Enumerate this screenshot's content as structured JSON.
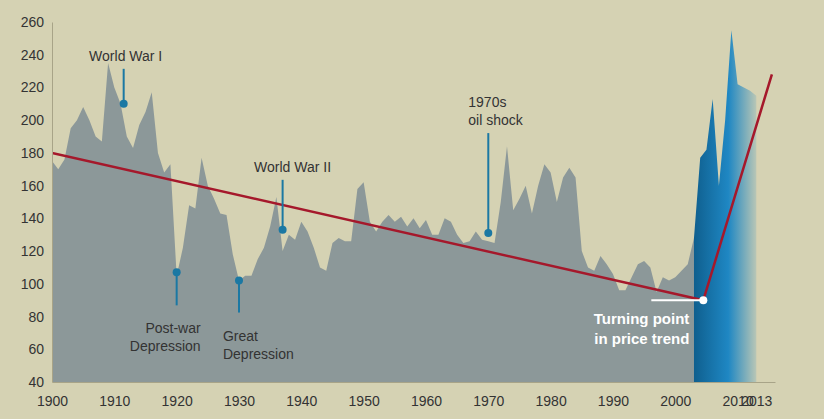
{
  "chart_data": {
    "type": "area",
    "x": [
      1900,
      1901,
      1902,
      1903,
      1904,
      1905,
      1906,
      1907,
      1908,
      1909,
      1910,
      1911,
      1912,
      1913,
      1914,
      1915,
      1916,
      1917,
      1918,
      1919,
      1920,
      1921,
      1922,
      1923,
      1924,
      1925,
      1926,
      1927,
      1928,
      1929,
      1930,
      1931,
      1932,
      1933,
      1934,
      1935,
      1936,
      1937,
      1938,
      1939,
      1940,
      1941,
      1942,
      1943,
      1944,
      1945,
      1946,
      1947,
      1948,
      1949,
      1950,
      1951,
      1952,
      1953,
      1954,
      1955,
      1956,
      1957,
      1958,
      1959,
      1960,
      1961,
      1962,
      1963,
      1964,
      1965,
      1966,
      1967,
      1968,
      1969,
      1970,
      1971,
      1972,
      1973,
      1974,
      1975,
      1976,
      1977,
      1978,
      1979,
      1980,
      1981,
      1982,
      1983,
      1984,
      1985,
      1986,
      1987,
      1988,
      1989,
      1990,
      1991,
      1992,
      1993,
      1994,
      1995,
      1996,
      1997,
      1998,
      1999,
      2000,
      2001,
      2002,
      2003,
      2004,
      2005,
      2006,
      2007,
      2008,
      2009,
      2010,
      2011,
      2012,
      2013
    ],
    "series": [
      {
        "type": "area",
        "color": "#8c9899",
        "values": [
          175,
          170,
          176,
          195,
          200,
          208,
          200,
          190,
          187,
          235,
          220,
          210,
          190,
          183,
          197,
          205,
          217,
          180,
          168,
          173,
          105,
          122,
          148,
          146,
          177,
          160,
          152,
          143,
          142,
          118,
          102,
          105,
          105,
          115,
          122,
          135,
          153,
          120,
          130,
          127,
          138,
          132,
          122,
          110,
          108,
          125,
          128,
          126,
          126,
          158,
          162,
          138,
          132,
          138,
          142,
          138,
          141,
          135,
          140,
          134,
          139,
          130,
          130,
          140,
          138,
          130,
          125,
          126,
          132,
          127,
          126,
          125,
          150,
          184,
          145,
          152,
          160,
          143,
          160,
          173,
          168,
          150,
          165,
          171,
          165,
          120,
          110,
          108,
          117,
          112,
          106,
          96,
          96,
          104,
          112,
          114,
          110,
          95,
          104,
          102,
          104,
          108,
          112,
          128,
          null,
          null,
          null,
          null,
          null,
          null,
          null,
          null,
          null,
          null
        ]
      },
      {
        "type": "area",
        "color": "#0f5f8e",
        "values": [
          null,
          null,
          null,
          null,
          null,
          null,
          null,
          null,
          null,
          null,
          null,
          null,
          null,
          null,
          null,
          null,
          null,
          null,
          null,
          null,
          null,
          null,
          null,
          null,
          null,
          null,
          null,
          null,
          null,
          null,
          null,
          null,
          null,
          null,
          null,
          null,
          null,
          null,
          null,
          null,
          null,
          null,
          null,
          null,
          null,
          null,
          null,
          null,
          null,
          null,
          null,
          null,
          null,
          null,
          null,
          null,
          null,
          null,
          null,
          null,
          null,
          null,
          null,
          null,
          null,
          null,
          null,
          null,
          null,
          null,
          null,
          null,
          null,
          null,
          null,
          null,
          null,
          null,
          null,
          null,
          null,
          null,
          null,
          null,
          null,
          null,
          null,
          null,
          null,
          null,
          null,
          null,
          null,
          null,
          null,
          null,
          null,
          null,
          null,
          null,
          null,
          null,
          null,
          128,
          177,
          182,
          213,
          160,
          200,
          255,
          222,
          220,
          218,
          215
        ]
      },
      {
        "type": "line",
        "color": "#a5182b",
        "x": [
          1900,
          2004.5,
          2015.5
        ],
        "values": [
          180,
          90,
          228
        ]
      }
    ],
    "xlim": [
      1900,
      2016
    ],
    "xticks": [
      1900,
      1910,
      1920,
      1930,
      1940,
      1950,
      1960,
      1970,
      1980,
      1990,
      2000,
      2010,
      2013
    ],
    "ylim": [
      40,
      260
    ],
    "yticks": [
      40,
      60,
      80,
      100,
      120,
      140,
      160,
      180,
      200,
      220,
      240,
      260
    ],
    "grid": false,
    "annotations": [
      {
        "lines": [
          "World War I"
        ],
        "x": 1911.5,
        "y": 210,
        "side": "above"
      },
      {
        "lines": [
          "Post-war",
          "Depression"
        ],
        "x": 1920,
        "y": 107,
        "side": "below"
      },
      {
        "lines": [
          "Great",
          "Depression"
        ],
        "x": 1930,
        "y": 102,
        "side": "below"
      },
      {
        "lines": [
          "World War II"
        ],
        "x": 1937,
        "y": 133,
        "side": "above"
      },
      {
        "lines": [
          "1970s",
          "oil shock"
        ],
        "x": 1970,
        "y": 131,
        "side": "above"
      },
      {
        "lines": [
          "Turning point",
          "in price trend"
        ],
        "x": 2004.5,
        "y": 90,
        "side": "left"
      }
    ]
  }
}
